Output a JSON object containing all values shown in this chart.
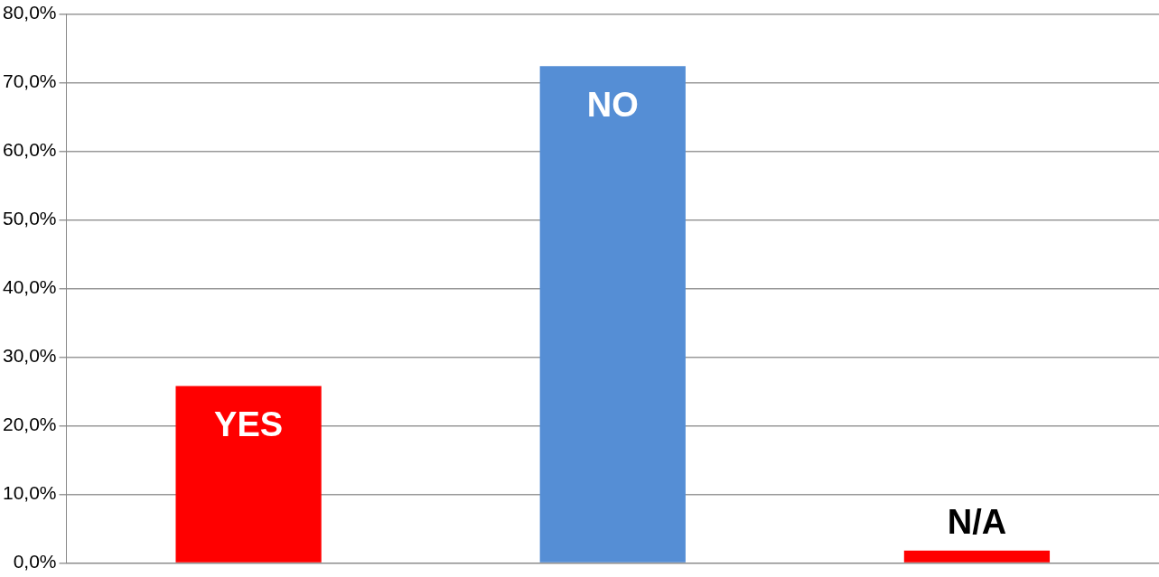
{
  "chart_data": {
    "type": "bar",
    "categories": [
      "YES",
      "NO",
      "N/A"
    ],
    "values": [
      25.8,
      72.4,
      1.8
    ],
    "colors": [
      "#ff0000",
      "#558ed5",
      "#ff0000"
    ],
    "ylim": [
      0,
      80
    ],
    "yticks": [
      {
        "value": 0,
        "label": "0,0%"
      },
      {
        "value": 10,
        "label": "10,0%"
      },
      {
        "value": 20,
        "label": "20,0%"
      },
      {
        "value": 30,
        "label": "30,0%"
      },
      {
        "value": 40,
        "label": "40,0%"
      },
      {
        "value": 50,
        "label": "50,0%"
      },
      {
        "value": 60,
        "label": "60,0%"
      },
      {
        "value": 70,
        "label": "70,0%"
      },
      {
        "value": 80,
        "label": "80,0%"
      }
    ],
    "grid": "y"
  }
}
